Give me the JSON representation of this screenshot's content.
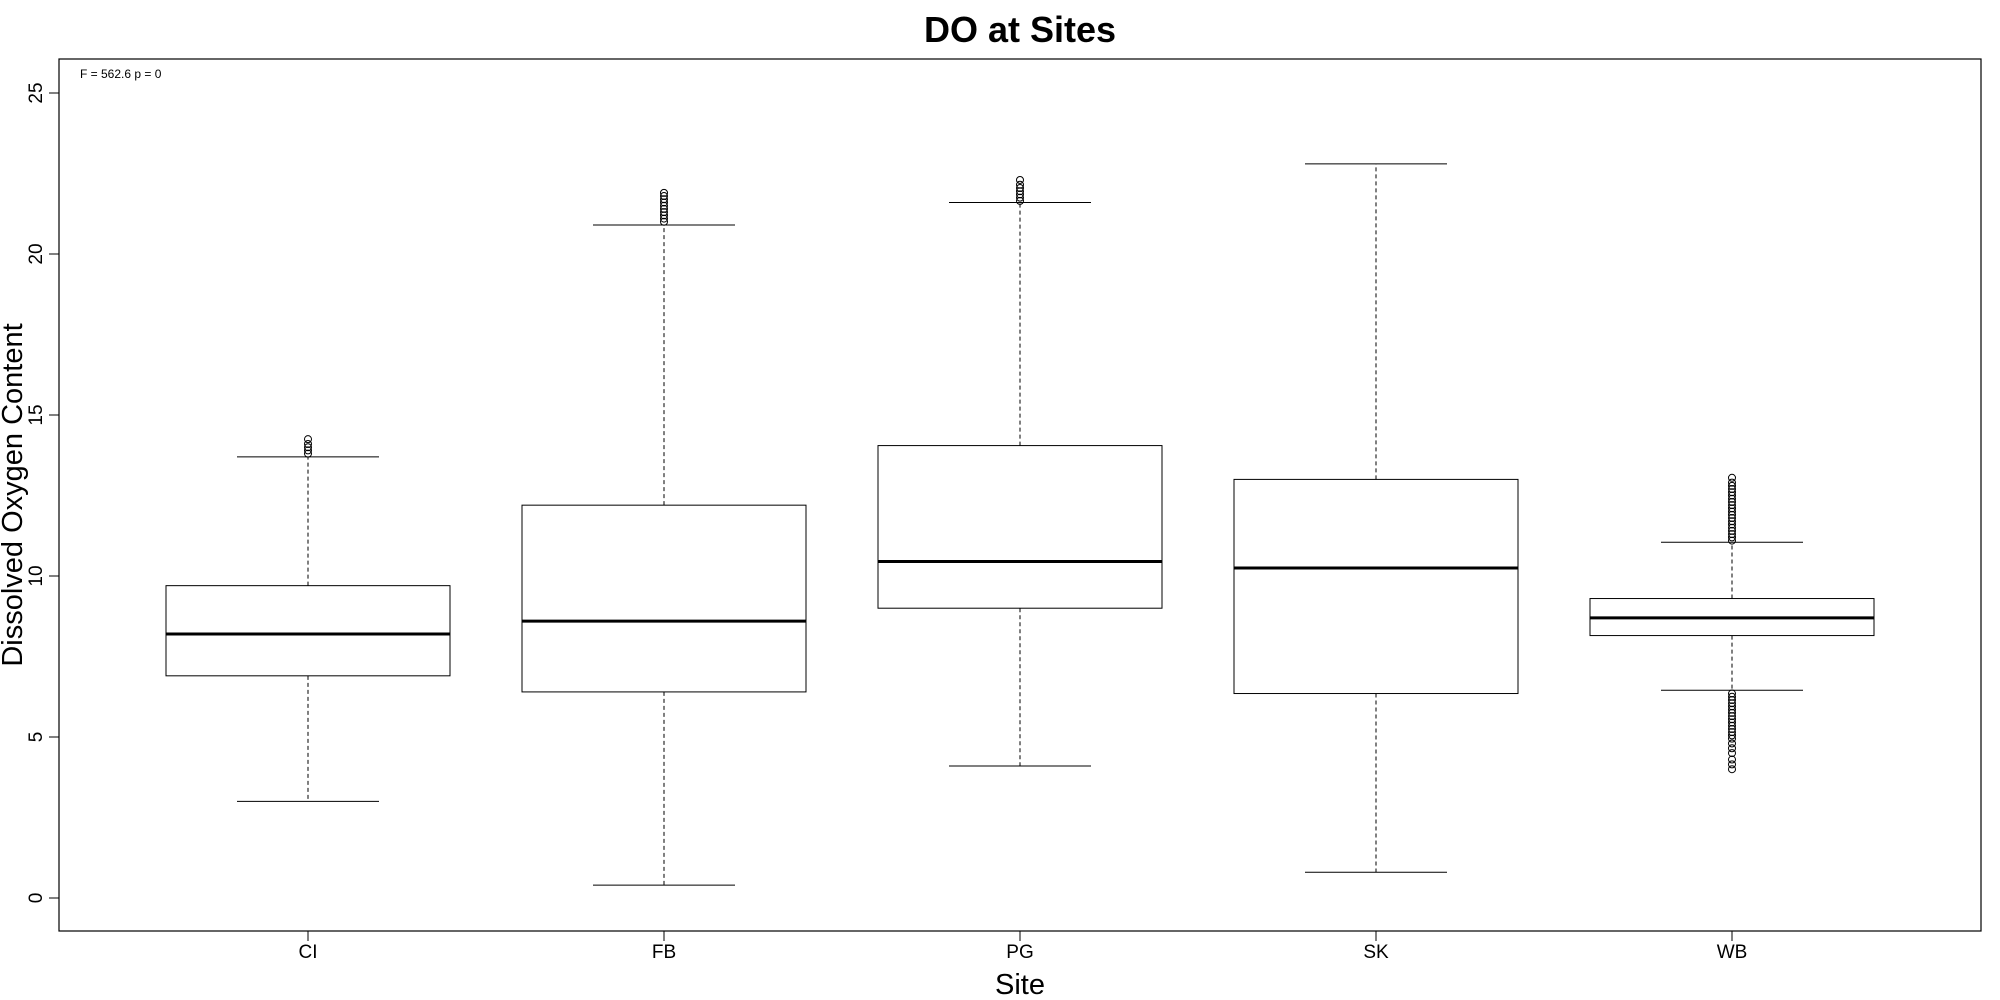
{
  "chart_data": {
    "type": "boxplot",
    "title": "DO at Sites",
    "xlabel": "Site",
    "ylabel": "Dissolved Oxygen Content",
    "annotation": "F = 562.6 p = 0",
    "ylim": [
      -1.0,
      26.0
    ],
    "yticks": [
      0,
      5,
      10,
      15,
      20,
      25
    ],
    "categories": [
      "CI",
      "FB",
      "PG",
      "SK",
      "WB"
    ],
    "boxes": [
      {
        "category": "CI",
        "whisker_low": 3.0,
        "q1": 6.9,
        "median": 8.2,
        "q3": 9.7,
        "whisker_high": 13.7,
        "outliers": [
          13.8,
          13.9,
          14.0,
          14.1,
          14.25
        ]
      },
      {
        "category": "FB",
        "whisker_low": 0.4,
        "q1": 6.4,
        "median": 8.6,
        "q3": 12.2,
        "whisker_high": 20.9,
        "outliers": [
          21.0,
          21.1,
          21.2,
          21.3,
          21.4,
          21.5,
          21.6,
          21.7,
          21.8,
          21.9
        ]
      },
      {
        "category": "PG",
        "whisker_low": 4.1,
        "q1": 9.0,
        "median": 10.45,
        "q3": 14.05,
        "whisker_high": 21.6,
        "outliers": [
          21.65,
          21.75,
          21.85,
          21.95,
          22.05,
          22.15,
          22.3
        ]
      },
      {
        "category": "SK",
        "whisker_low": 0.8,
        "q1": 6.35,
        "median": 10.25,
        "q3": 13.0,
        "whisker_high": 22.8,
        "outliers": []
      },
      {
        "category": "WB",
        "whisker_low": 6.45,
        "q1": 8.15,
        "median": 8.7,
        "q3": 9.3,
        "whisker_high": 11.05,
        "outliers": [
          11.1,
          11.2,
          11.3,
          11.4,
          11.5,
          11.6,
          11.7,
          11.8,
          11.9,
          12.0,
          12.1,
          12.2,
          12.3,
          12.4,
          12.5,
          12.6,
          12.7,
          12.8,
          12.9,
          13.05,
          6.35,
          6.25,
          6.15,
          6.05,
          5.95,
          5.85,
          5.75,
          5.65,
          5.55,
          5.45,
          5.35,
          5.25,
          5.15,
          5.05,
          4.95,
          4.8,
          4.65,
          4.5,
          4.3,
          4.15,
          4.0
        ]
      }
    ],
    "grid": false,
    "legend": "none"
  }
}
